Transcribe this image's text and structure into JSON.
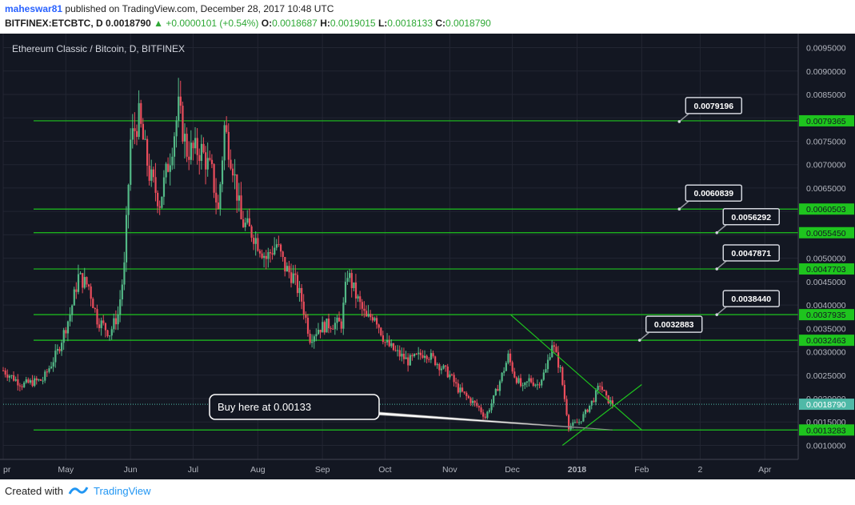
{
  "header": {
    "author": "maheswar81",
    "published": "published on TradingView.com, December 28, 2017 10:48 UTC",
    "symbol": "BITFINEX:ETCBTC, D",
    "last": "0.0018790",
    "change": "+0.0000101 (+0.54%)",
    "o_label": "O:",
    "o": "0.0018687",
    "h_label": "H:",
    "h": "0.0019015",
    "l_label": "L:",
    "l": "0.0018133",
    "c_label": "C:",
    "c": "0.0018790"
  },
  "footer": {
    "created_with": "Created with",
    "brand": "TradingView"
  },
  "colors": {
    "background": "#131722",
    "up": "#53b987",
    "down": "#eb4d5c",
    "level_line": "#1ec41e",
    "grid": "#232633",
    "axis_text": "#b2b5be"
  },
  "chart_data": {
    "type": "candlestick",
    "title": "Ethereum Classic / Bitcoin, D, BITFINEX",
    "ylim": [
      0.0007,
      0.0098
    ],
    "y_ticks": [
      "0.0010000",
      "0.0015000",
      "0.0020000",
      "0.0025000",
      "0.0030000",
      "0.0035000",
      "0.0040000",
      "0.0045000",
      "0.0050000",
      "0.0055000",
      "0.0060000",
      "0.0065000",
      "0.0070000",
      "0.0075000",
      "0.0080000",
      "0.0085000",
      "0.0090000",
      "0.0095000"
    ],
    "x_ticks": [
      "pr",
      "May",
      "Jun",
      "Jul",
      "Aug",
      "Sep",
      "Oct",
      "Nov",
      "Dec",
      "2018",
      "Feb",
      "2",
      "Apr"
    ],
    "x_tick_dates": [
      "2017-04-01",
      "2017-05-01",
      "2017-06-01",
      "2017-07-01",
      "2017-08-01",
      "2017-09-01",
      "2017-10-01",
      "2017-11-01",
      "2017-12-01",
      "2018-01-01",
      "2018-02-01",
      "2018-03-01",
      "2018-04-01"
    ],
    "xlim": [
      "2017-04-01",
      "2018-04-17"
    ],
    "close_anchors": [
      {
        "date": "2017-04-01",
        "value": 0.0026
      },
      {
        "date": "2017-04-10",
        "value": 0.0023
      },
      {
        "date": "2017-04-20",
        "value": 0.0024
      },
      {
        "date": "2017-04-27",
        "value": 0.003
      },
      {
        "date": "2017-05-03",
        "value": 0.0038
      },
      {
        "date": "2017-05-07",
        "value": 0.0046
      },
      {
        "date": "2017-05-12",
        "value": 0.0044
      },
      {
        "date": "2017-05-16",
        "value": 0.0037
      },
      {
        "date": "2017-05-22",
        "value": 0.0034
      },
      {
        "date": "2017-05-26",
        "value": 0.0038
      },
      {
        "date": "2017-05-29",
        "value": 0.0048
      },
      {
        "date": "2017-06-01",
        "value": 0.0075
      },
      {
        "date": "2017-06-05",
        "value": 0.008
      },
      {
        "date": "2017-06-10",
        "value": 0.0068
      },
      {
        "date": "2017-06-15",
        "value": 0.0062
      },
      {
        "date": "2017-06-20",
        "value": 0.0072
      },
      {
        "date": "2017-06-24",
        "value": 0.0082
      },
      {
        "date": "2017-06-28",
        "value": 0.0073
      },
      {
        "date": "2017-07-05",
        "value": 0.0073
      },
      {
        "date": "2017-07-10",
        "value": 0.0068
      },
      {
        "date": "2017-07-13",
        "value": 0.006
      },
      {
        "date": "2017-07-16",
        "value": 0.0078
      },
      {
        "date": "2017-07-20",
        "value": 0.007
      },
      {
        "date": "2017-07-24",
        "value": 0.0058
      },
      {
        "date": "2017-07-30",
        "value": 0.0055
      },
      {
        "date": "2017-08-05",
        "value": 0.005
      },
      {
        "date": "2017-08-10",
        "value": 0.0053
      },
      {
        "date": "2017-08-14",
        "value": 0.0048
      },
      {
        "date": "2017-08-18",
        "value": 0.0046
      },
      {
        "date": "2017-08-22",
        "value": 0.0041
      },
      {
        "date": "2017-08-26",
        "value": 0.0033
      },
      {
        "date": "2017-08-30",
        "value": 0.0035
      },
      {
        "date": "2017-09-05",
        "value": 0.0036
      },
      {
        "date": "2017-09-10",
        "value": 0.0036
      },
      {
        "date": "2017-09-13",
        "value": 0.0047
      },
      {
        "date": "2017-09-17",
        "value": 0.0042
      },
      {
        "date": "2017-09-22",
        "value": 0.0037
      },
      {
        "date": "2017-09-26",
        "value": 0.0038
      },
      {
        "date": "2017-10-01",
        "value": 0.0032
      },
      {
        "date": "2017-10-06",
        "value": 0.003
      },
      {
        "date": "2017-10-12",
        "value": 0.0028
      },
      {
        "date": "2017-10-17",
        "value": 0.0029
      },
      {
        "date": "2017-10-20",
        "value": 0.003
      },
      {
        "date": "2017-10-25",
        "value": 0.0028
      },
      {
        "date": "2017-11-01",
        "value": 0.0025
      },
      {
        "date": "2017-11-05",
        "value": 0.0022
      },
      {
        "date": "2017-11-10",
        "value": 0.002
      },
      {
        "date": "2017-11-15",
        "value": 0.0018
      },
      {
        "date": "2017-11-18",
        "value": 0.0016
      },
      {
        "date": "2017-11-22",
        "value": 0.002
      },
      {
        "date": "2017-11-26",
        "value": 0.0025
      },
      {
        "date": "2017-11-29",
        "value": 0.0029
      },
      {
        "date": "2017-12-02",
        "value": 0.0025
      },
      {
        "date": "2017-12-06",
        "value": 0.0022
      },
      {
        "date": "2017-12-09",
        "value": 0.0024
      },
      {
        "date": "2017-12-13",
        "value": 0.0023
      },
      {
        "date": "2017-12-17",
        "value": 0.0026
      },
      {
        "date": "2017-12-20",
        "value": 0.0032
      },
      {
        "date": "2017-12-24",
        "value": 0.0026
      },
      {
        "date": "2017-12-28",
        "value": 0.0014
      },
      {
        "date": "2018-01-02",
        "value": 0.0015
      },
      {
        "date": "2018-01-05",
        "value": 0.0017
      },
      {
        "date": "2018-01-09",
        "value": 0.002
      },
      {
        "date": "2018-01-12",
        "value": 0.0023
      },
      {
        "date": "2018-01-15",
        "value": 0.002
      },
      {
        "date": "2018-01-18",
        "value": 0.00188
      }
    ],
    "horizontal_levels": [
      "0.0079365",
      "0.0060503",
      "0.0055450",
      "0.0047703",
      "0.0037935",
      "0.0032463",
      "0.0013283"
    ],
    "current_price": "0.0018790",
    "callouts": [
      {
        "text": "0.0079196",
        "point": {
          "date": "2018-02-19",
          "value": 0.0079196
        }
      },
      {
        "text": "0.0060839",
        "point": {
          "date": "2018-02-19",
          "value": 0.0060503
        }
      },
      {
        "text": "0.0056292",
        "point": {
          "date": "2018-03-09",
          "value": 0.005545
        }
      },
      {
        "text": "0.0047871",
        "point": {
          "date": "2018-03-09",
          "value": 0.0047703
        }
      },
      {
        "text": "0.0038440",
        "point": {
          "date": "2018-03-09",
          "value": 0.0037935
        }
      },
      {
        "text": "0.0032883",
        "point": {
          "date": "2018-01-31",
          "value": 0.0032463
        }
      }
    ],
    "annotation": {
      "text": "Buy here at 0.00133",
      "target": {
        "date": "2018-01-18",
        "value": 0.00133
      }
    },
    "trend_lines": [
      {
        "from": {
          "date": "2017-11-30",
          "value": 0.0038
        },
        "to": {
          "date": "2018-02-01",
          "value": 0.00133
        }
      },
      {
        "from": {
          "date": "2017-12-25",
          "value": 0.001
        },
        "to": {
          "date": "2018-02-01",
          "value": 0.0023
        }
      }
    ]
  }
}
